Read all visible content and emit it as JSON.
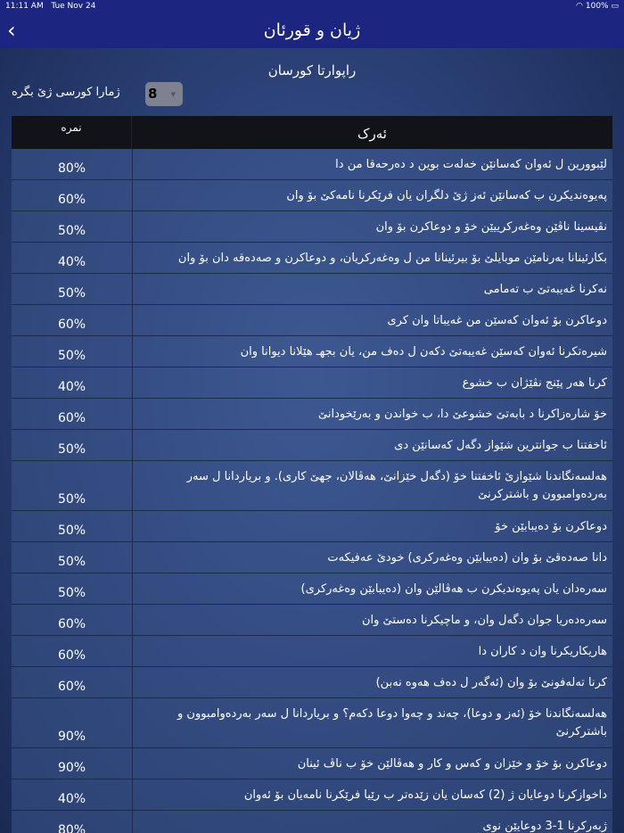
{
  "status": {
    "time": "11:11 AM",
    "date": "Tue Nov 24",
    "battery": "100%"
  },
  "nav": {
    "title": "ژیان و قورئان"
  },
  "report_title": "راپوارتا کورسان",
  "course_picker": {
    "label": "ژمارا کورسی ژێ بگره",
    "value": "8"
  },
  "table": {
    "headers": {
      "task": "ئەرک",
      "score": "نمره"
    },
    "rows": [
      {
        "task": "لێبوورین ل ئەوان کەسانێن خەلەت بوین د دەرحەقا من دا",
        "score": "80%"
      },
      {
        "task": "پەیوەندیکرن ب کەسانێن ئەز ژێ دلگران یان فرێکرنا نامەکێ بۆ وان",
        "score": "60%"
      },
      {
        "task": "نڤیسینا ناڤێن وەغەرکرییێن خۆ و دوعاکرن بۆ وان",
        "score": "50%"
      },
      {
        "task": "بکارئینانا بەرنامێن موبایلێ بۆ بیرئینانا من ل وەغەرکریان، و دوعاکرن و صەدەقە دان بۆ وان",
        "score": "40%"
      },
      {
        "task": "نەکرنا غەیبەتێ ب تەمامی",
        "score": "50%"
      },
      {
        "task": "دوعاکرن بۆ ئەوان کەسێن من غەیباتا وان کری",
        "score": "60%"
      },
      {
        "task": "شیرەتکرنا ئەوان کەسێن غەیبەتێ دکەن ل دەف من، یان بجهـ هێلانا دیوانا وان",
        "score": "50%"
      },
      {
        "task": "کرنا هەر پێنج نڤێژان ب خشوع",
        "score": "40%"
      },
      {
        "task": "خۆ شارەزاکرنا د بابەتێ خشوعێ دا، ب خواندن و بەرێخودانێ",
        "score": "60%"
      },
      {
        "task": "ئاخفتنا ب جوانترین شێواز دگەل کەسانێن دی",
        "score": "50%"
      },
      {
        "task": "هەلسەنگاندنا شێوازێ ئاخفتنا خۆ (دگەل خێزانێ، هەڤالان، جهێ کاری). و بریاردانا ل سەر بەردەوامبوون و باشترکرنێ",
        "score": "50%",
        "tall": true
      },
      {
        "task": "دوعاکرن بۆ دەیبابێن خۆ",
        "score": "50%"
      },
      {
        "task": "دانا صەدەقێ بۆ وان (دەیبابێن وەغەرکری) خودێ عەفیکەت",
        "score": "50%"
      },
      {
        "task": "سەرەدان یان پەیوەندیکرن ب هەڤالێن وان (دەیبابێن وەغەرکری)",
        "score": "50%"
      },
      {
        "task": "سەرەدەریا جوان دگەل وان، و ماچیکرنا دەستێ وان",
        "score": "60%"
      },
      {
        "task": "هاریکاریکرنا وان د کاران دا",
        "score": "60%"
      },
      {
        "task": "کرنا تەلەفونێ بۆ وان  (ئەگەر ل دەف هەوە نەبن)",
        "score": "60%"
      },
      {
        "task": "هەلسەنگاندنا خۆ (ئەز و دوعا)، چەند و چەوا دوعا دکەم؟ و بریاردانا ل سەر بەردەوامبوون و باشترکرنێ",
        "score": "90%",
        "tall": true
      },
      {
        "task": "دوعاکرن بۆ خۆ و خێزان و کەس و کار و هەڤالێن خۆ ب ناڤ ئینان",
        "score": "90%"
      },
      {
        "task": "داخوازکرنا دوعایان ژ (2) کەسان یان زێدەتر ب رێیا فرێکرنا نامەیان بۆ ئەوان",
        "score": "40%"
      },
      {
        "task": "ژبەرکرنا 1-3 دوعایێن نوی",
        "score": "80%"
      }
    ]
  }
}
